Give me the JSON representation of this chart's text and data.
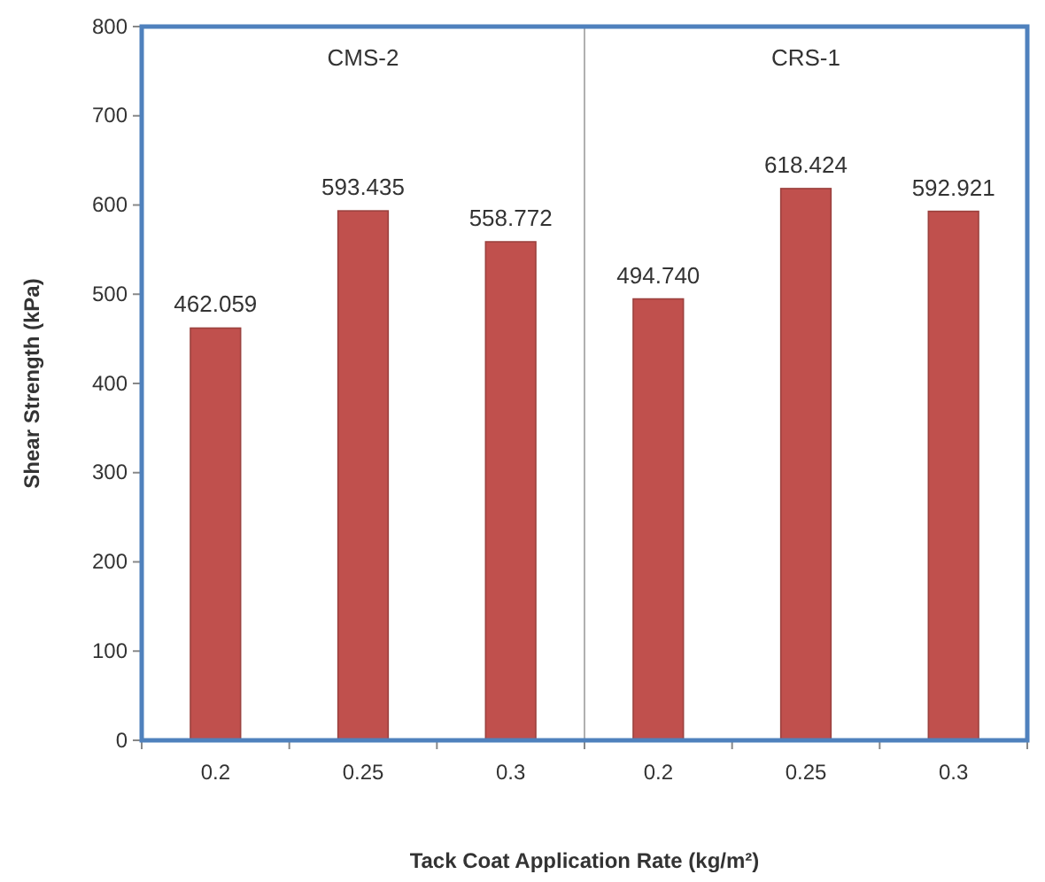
{
  "chart_data": {
    "type": "bar",
    "xlabel": "Tack Coat Application Rate (kg/m²)",
    "ylabel": "Shear Strength (kPa)",
    "categories": [
      "0.2",
      "0.25",
      "0.3",
      "0.2",
      "0.25",
      "0.3"
    ],
    "values": [
      462.059,
      593.435,
      558.772,
      494.74,
      618.424,
      592.921
    ],
    "value_labels": [
      "462.059",
      "593.435",
      "558.772",
      "494.740",
      "618.424",
      "592.921"
    ],
    "color": "#c0504d",
    "ylim": [
      0,
      800
    ],
    "yticks": [
      0,
      100,
      200,
      300,
      400,
      500,
      600,
      700,
      800
    ],
    "grid": false,
    "annotations": [
      "CMS-2",
      "CRS-1"
    ]
  }
}
